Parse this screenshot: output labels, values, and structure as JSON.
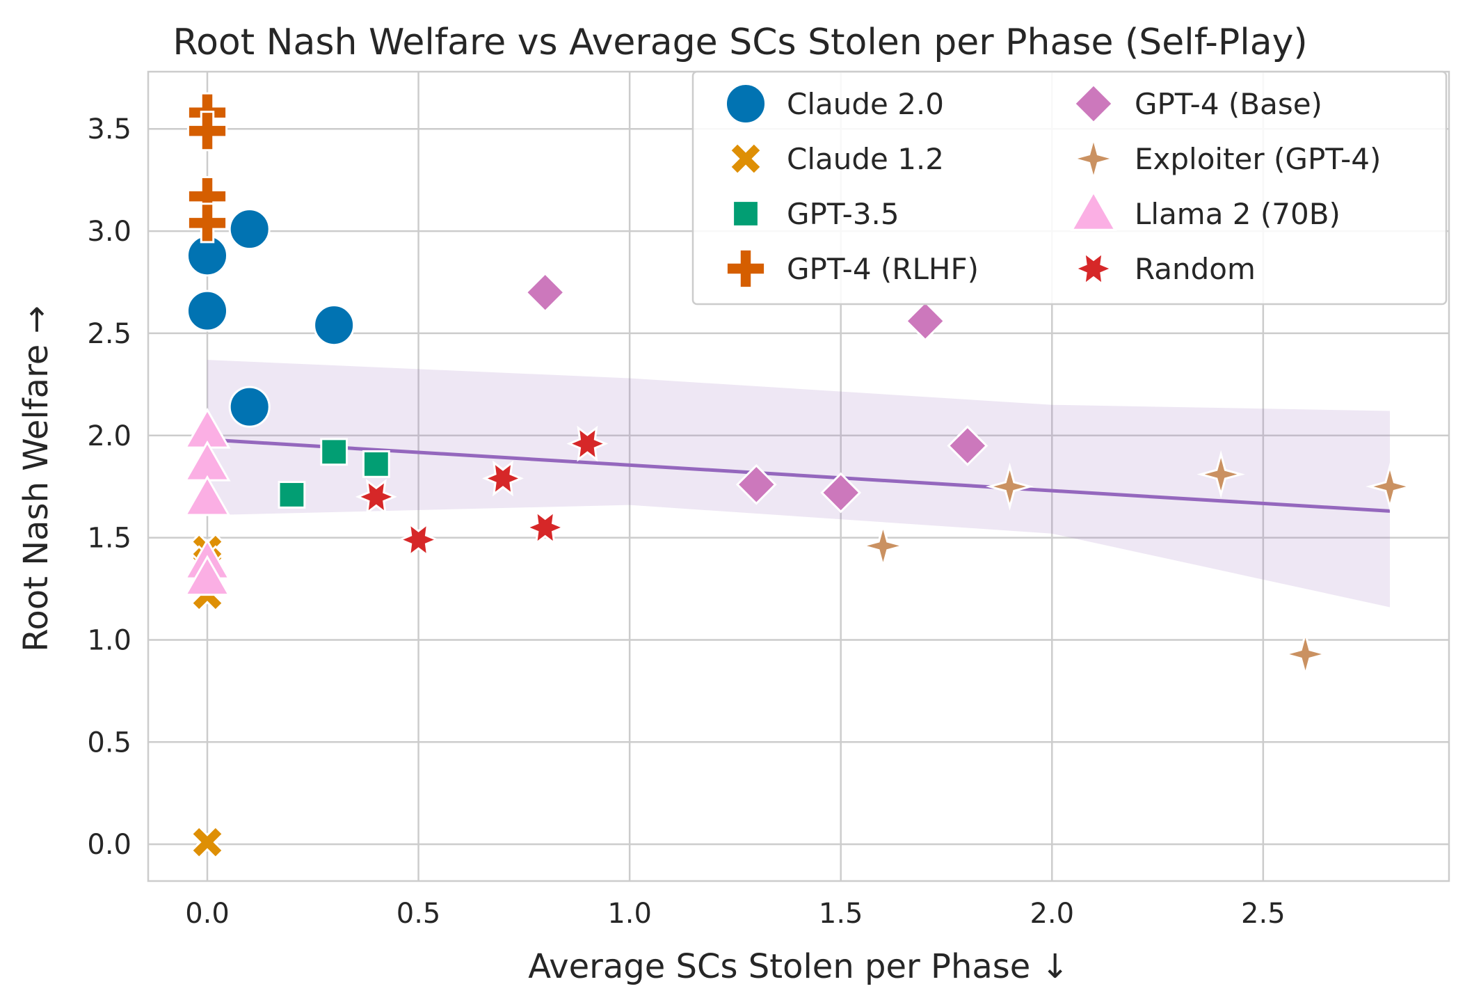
{
  "chart_data": {
    "type": "scatter",
    "title": "Root Nash Welfare vs Average SCs Stolen per Phase (Self-Play)",
    "xlabel": "Average SCs Stolen per Phase ↓",
    "ylabel": "Root Nash Welfare →",
    "xlim": [
      -0.14,
      2.94
    ],
    "ylim": [
      -0.18,
      3.78
    ],
    "xticks": [
      0.0,
      0.5,
      1.0,
      1.5,
      2.0,
      2.5
    ],
    "xtick_labels": [
      "0.0",
      "0.5",
      "1.0",
      "1.5",
      "2.0",
      "2.5"
    ],
    "yticks": [
      0.0,
      0.5,
      1.0,
      1.5,
      2.0,
      2.5,
      3.0,
      3.5
    ],
    "ytick_labels": [
      "0.0",
      "0.5",
      "1.0",
      "1.5",
      "2.0",
      "2.5",
      "3.0",
      "3.5"
    ],
    "grid": true,
    "legend_position": "top-right",
    "legend_columns": 2,
    "series": [
      {
        "name": "Claude 2.0",
        "marker": "circle",
        "color": "#0173b2",
        "points": [
          [
            0.0,
            2.88
          ],
          [
            0.0,
            2.61
          ],
          [
            0.1,
            3.01
          ],
          [
            0.3,
            2.54
          ],
          [
            0.1,
            2.14
          ]
        ]
      },
      {
        "name": "Claude 1.2",
        "marker": "x",
        "color": "#de8f05",
        "points": [
          [
            0.0,
            1.44
          ],
          [
            0.0,
            1.38
          ],
          [
            0.0,
            1.3
          ],
          [
            0.0,
            1.22
          ],
          [
            0.0,
            0.01
          ]
        ]
      },
      {
        "name": "GPT-3.5",
        "marker": "square",
        "color": "#029e73",
        "points": [
          [
            0.2,
            1.71
          ],
          [
            0.3,
            1.92
          ],
          [
            0.4,
            1.86
          ]
        ]
      },
      {
        "name": "GPT-4 (RLHF)",
        "marker": "plus",
        "color": "#d55e00",
        "points": [
          [
            0.0,
            3.58
          ],
          [
            0.0,
            3.49
          ],
          [
            0.0,
            3.17
          ],
          [
            0.0,
            3.04
          ]
        ]
      },
      {
        "name": "GPT-4 (Base)",
        "marker": "diamond",
        "color": "#cc78bc",
        "points": [
          [
            0.8,
            2.7
          ],
          [
            1.7,
            2.56
          ],
          [
            1.8,
            1.95
          ],
          [
            1.3,
            1.76
          ],
          [
            1.5,
            1.72
          ]
        ]
      },
      {
        "name": "Exploiter (GPT-4)",
        "marker": "star4",
        "color": "#ca9161",
        "points": [
          [
            1.6,
            1.46
          ],
          [
            1.9,
            1.75
          ],
          [
            2.4,
            1.81
          ],
          [
            2.6,
            0.93
          ],
          [
            2.8,
            1.75
          ]
        ]
      },
      {
        "name": "Llama 2 (70B)",
        "marker": "triangle",
        "color": "#fbafe4",
        "points": [
          [
            0.0,
            2.02
          ],
          [
            0.0,
            1.86
          ],
          [
            0.0,
            1.69
          ],
          [
            0.0,
            1.38
          ],
          [
            0.0,
            1.3
          ]
        ]
      },
      {
        "name": "Random",
        "marker": "star6",
        "color": "#d62728",
        "points": [
          [
            0.4,
            1.7
          ],
          [
            0.5,
            1.49
          ],
          [
            0.7,
            1.79
          ],
          [
            0.8,
            1.55
          ],
          [
            0.9,
            1.96
          ]
        ]
      }
    ],
    "regression": {
      "color": "#9467bd",
      "x": [
        0.0,
        2.8
      ],
      "y": [
        1.98,
        1.63
      ],
      "ci_upper": [
        2.37,
        2.28,
        2.15,
        2.12
      ],
      "ci_lower": [
        1.61,
        1.66,
        1.52,
        1.16
      ],
      "ci_x": [
        0.0,
        1.0,
        2.0,
        2.8
      ]
    }
  }
}
